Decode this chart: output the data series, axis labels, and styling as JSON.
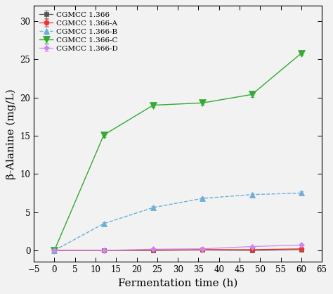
{
  "series": [
    {
      "label": "CGMCC 1.366",
      "x": [
        0,
        12,
        24,
        36,
        48,
        60
      ],
      "y": [
        0.0,
        0.0,
        0.0,
        0.05,
        0.0,
        0.1
      ],
      "color": "#555555",
      "marker": "s",
      "markersize": 5,
      "linestyle": "-",
      "linewidth": 0.9,
      "markerfacecolor": "#555555",
      "zorder": 4
    },
    {
      "label": "CGMCC 1.366-A",
      "x": [
        0,
        12,
        24,
        36,
        48,
        60
      ],
      "y": [
        0.0,
        0.0,
        0.05,
        0.1,
        0.1,
        0.2
      ],
      "color": "#ee3333",
      "marker": "o",
      "markersize": 5,
      "linestyle": "-",
      "linewidth": 0.9,
      "markerfacecolor": "#ee3333",
      "zorder": 4
    },
    {
      "label": "CGMCC 1.366-B",
      "x": [
        0,
        12,
        24,
        36,
        48,
        60
      ],
      "y": [
        0.0,
        3.5,
        5.6,
        6.8,
        7.3,
        7.5
      ],
      "color": "#6baed6",
      "marker": "^",
      "markersize": 6,
      "linestyle": "--",
      "linewidth": 1.0,
      "markerfacecolor": "#6baed6",
      "zorder": 4
    },
    {
      "label": "CGMCC 1.366-C",
      "x": [
        0,
        12,
        24,
        36,
        48,
        60
      ],
      "y": [
        0.0,
        15.1,
        19.0,
        19.3,
        20.4,
        25.8
      ],
      "color": "#33aa33",
      "marker": "v",
      "markersize": 7,
      "linestyle": "-",
      "linewidth": 1.0,
      "markerfacecolor": "#33aa33",
      "zorder": 4
    },
    {
      "label": "CGMCC 1.366-D",
      "x": [
        0,
        12,
        24,
        36,
        48,
        60
      ],
      "y": [
        0.0,
        0.0,
        0.15,
        0.2,
        0.5,
        0.7
      ],
      "color": "#cc88ee",
      "marker": "D",
      "markersize": 4,
      "linestyle": "-",
      "linewidth": 0.9,
      "markerfacecolor": "#cc88ee",
      "zorder": 4
    }
  ],
  "xlim": [
    -5,
    65
  ],
  "ylim": [
    -1.5,
    32
  ],
  "xticks": [
    -5,
    0,
    5,
    10,
    15,
    20,
    25,
    30,
    35,
    40,
    45,
    50,
    55,
    60,
    65
  ],
  "yticks": [
    0,
    5,
    10,
    15,
    20,
    25,
    30
  ],
  "xlabel": "Fermentation time (h)",
  "ylabel": "β-Alanine (mg/L)",
  "xlabel_fontsize": 11,
  "ylabel_fontsize": 11,
  "tick_fontsize": 8.5,
  "legend_fontsize": 7.5,
  "background_color": "#f2f2f2",
  "error_bars": {
    "CGMCC 1.366-B": [
      0.0,
      0.2,
      0.15,
      0.2,
      0.25,
      0.2
    ],
    "CGMCC 1.366-C": [
      0.0,
      0.3,
      0.2,
      0.25,
      0.3,
      0.35
    ],
    "CGMCC 1.366-D": [
      0.0,
      0.0,
      0.05,
      0.05,
      0.05,
      0.05
    ],
    "CGMCC 1.366": [
      0.0,
      0.0,
      0.0,
      0.05,
      0.0,
      0.05
    ],
    "CGMCC 1.366-A": [
      0.0,
      0.0,
      0.0,
      0.05,
      0.05,
      0.05
    ]
  }
}
